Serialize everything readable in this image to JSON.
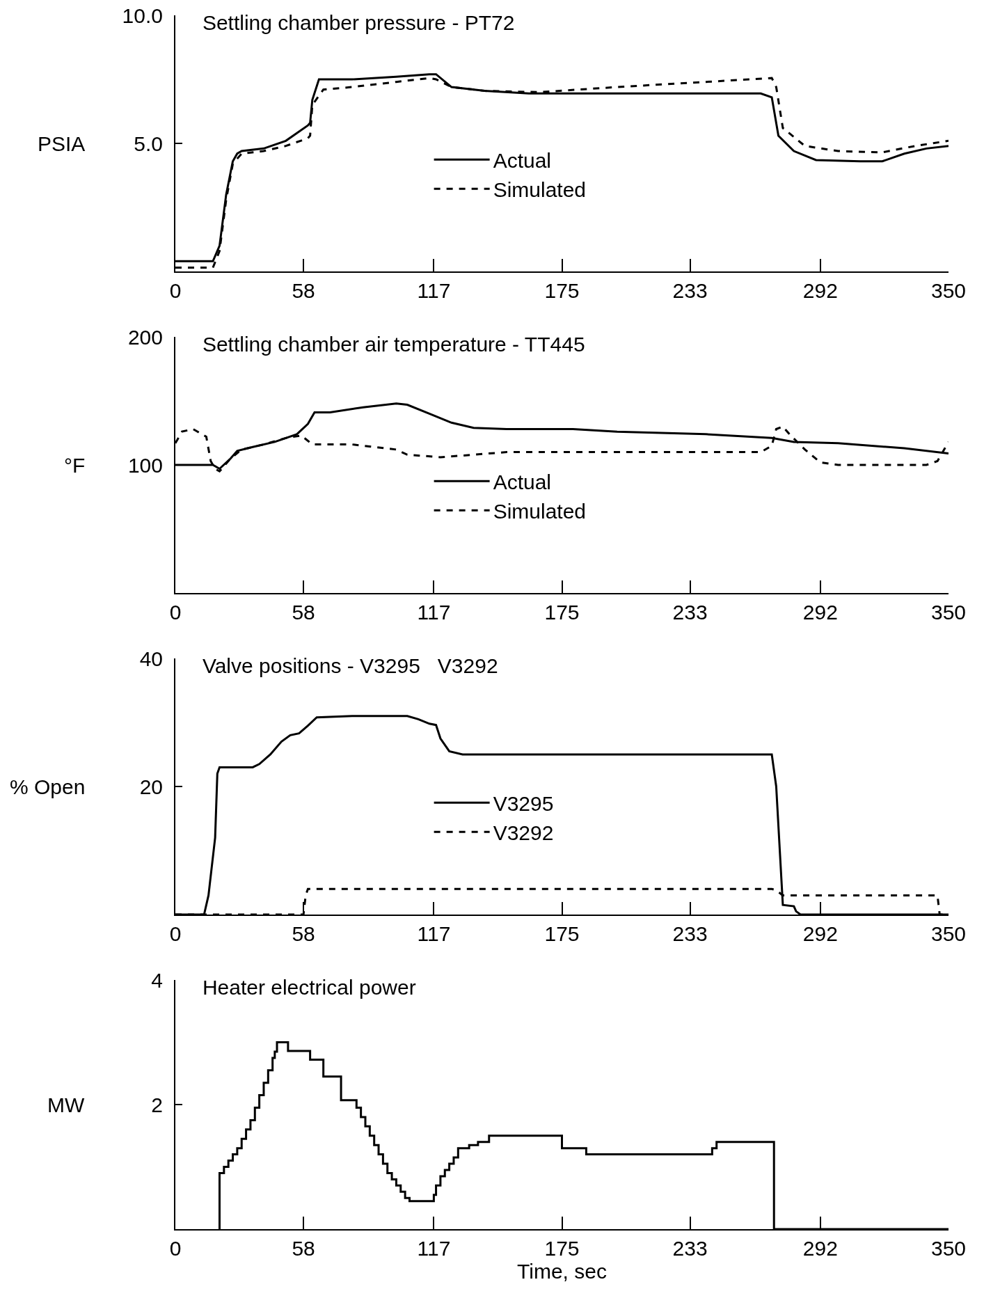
{
  "chart_data": [
    {
      "type": "line",
      "title": "Settling chamber pressure - PT72",
      "ylabel": "PSIA",
      "xlim": [
        0,
        350
      ],
      "xticks": [
        0,
        58,
        117,
        175,
        233,
        292,
        350
      ],
      "ylim": [
        0,
        10
      ],
      "yticks": [
        {
          "value": 5,
          "label": "5.0"
        },
        {
          "value": 10,
          "label": "10.0"
        }
      ],
      "legend": "center",
      "grid": false,
      "series": [
        {
          "name": "Actual",
          "color": "#000000",
          "line_style": "solid",
          "x": [
            0,
            17,
            20,
            23,
            26,
            28,
            30,
            40,
            50,
            55,
            60,
            61,
            62,
            65,
            80,
            100,
            115,
            118,
            125,
            140,
            160,
            200,
            265,
            270,
            273,
            280,
            290,
            310,
            320,
            330,
            340,
            350
          ],
          "values": [
            0.4,
            0.4,
            1.0,
            3.0,
            4.3,
            4.6,
            4.7,
            4.8,
            5.1,
            5.4,
            5.7,
            5.8,
            6.7,
            7.5,
            7.5,
            7.6,
            7.7,
            7.7,
            7.2,
            7.05,
            6.95,
            6.95,
            6.95,
            6.8,
            5.3,
            4.7,
            4.35,
            4.3,
            4.3,
            4.6,
            4.8,
            4.9
          ]
        },
        {
          "name": "Simulated",
          "color": "#000000",
          "line_style": "dashed",
          "x": [
            0,
            17,
            20,
            23,
            26,
            30,
            40,
            50,
            60,
            61,
            62,
            67,
            80,
            100,
            115,
            118,
            125,
            140,
            165,
            200,
            240,
            270,
            272,
            275,
            285,
            300,
            320,
            335,
            350
          ],
          "values": [
            0.15,
            0.15,
            0.8,
            2.8,
            4.2,
            4.6,
            4.7,
            4.9,
            5.2,
            5.3,
            6.5,
            7.1,
            7.2,
            7.4,
            7.55,
            7.5,
            7.2,
            7.05,
            7.0,
            7.2,
            7.4,
            7.55,
            7.2,
            5.6,
            4.9,
            4.7,
            4.65,
            4.9,
            5.1
          ]
        }
      ]
    },
    {
      "type": "line",
      "title": "Settling chamber air temperature - TT445",
      "ylabel": "°F",
      "xlim": [
        0,
        350
      ],
      "xticks": [
        0,
        58,
        117,
        175,
        233,
        292,
        350
      ],
      "ylim": [
        0,
        200
      ],
      "yticks": [
        100,
        200
      ],
      "legend": "center",
      "grid": false,
      "series": [
        {
          "name": "Actual",
          "color": "#000000",
          "line_style": "solid",
          "x": [
            0,
            17,
            20,
            25,
            28,
            35,
            45,
            55,
            60,
            63,
            70,
            85,
            100,
            105,
            115,
            125,
            135,
            150,
            180,
            200,
            240,
            270,
            280,
            300,
            330,
            350
          ],
          "values": [
            100,
            100,
            97,
            105,
            111,
            114,
            118,
            124,
            132,
            141,
            141,
            145,
            148,
            147,
            140,
            133,
            129,
            128,
            128,
            126,
            124,
            121,
            118,
            117,
            113,
            109
          ]
        },
        {
          "name": "Simulated",
          "color": "#000000",
          "line_style": "dashed",
          "x": [
            0,
            3,
            8,
            14,
            16,
            18,
            20,
            25,
            30,
            40,
            50,
            57,
            62,
            80,
            100,
            105,
            120,
            135,
            150,
            200,
            265,
            270,
            272,
            275,
            278,
            285,
            292,
            300,
            340,
            345,
            350
          ],
          "values": [
            117,
            126,
            128,
            122,
            103,
            97,
            95,
            105,
            112,
            116,
            121,
            123,
            116,
            116,
            112,
            108,
            106,
            108,
            110,
            110,
            110,
            115,
            128,
            130,
            124,
            112,
            102,
            100,
            100,
            103,
            118
          ]
        }
      ]
    },
    {
      "type": "line",
      "title": "Valve positions - V3295   V3292",
      "ylabel": "% Open",
      "xlim": [
        0,
        350
      ],
      "xticks": [
        0,
        58,
        117,
        175,
        233,
        292,
        350
      ],
      "ylim": [
        0,
        40
      ],
      "yticks": [
        20,
        40
      ],
      "legend": "center",
      "grid": false,
      "series": [
        {
          "name": "V3295",
          "color": "#000000",
          "line_style": "solid",
          "x": [
            0,
            13,
            15,
            18,
            19,
            20,
            35,
            38,
            43,
            48,
            52,
            56,
            60,
            64,
            80,
            105,
            110,
            115,
            118,
            120,
            124,
            130,
            270,
            272,
            275,
            280,
            281,
            283,
            350
          ],
          "values": [
            0,
            0,
            3,
            12,
            22,
            23,
            23,
            23.5,
            25,
            27,
            28,
            28.3,
            29.5,
            30.8,
            31,
            31,
            30.5,
            29.8,
            29.6,
            27.5,
            25.5,
            25,
            25,
            20,
            1.5,
            1.3,
            0.5,
            0,
            0
          ]
        },
        {
          "name": "V3292",
          "color": "#000000",
          "line_style": "dashed",
          "x": [
            0,
            58,
            59,
            60,
            270,
            272,
            275,
            345,
            346,
            350
          ],
          "values": [
            0,
            0,
            3,
            4,
            4,
            3.8,
            3,
            3,
            0,
            0
          ]
        }
      ]
    },
    {
      "type": "step",
      "title": "Heater electrical power",
      "ylabel": "MW",
      "xlabel": "Time, sec",
      "xlim": [
        0,
        350
      ],
      "xticks": [
        0,
        58,
        117,
        175,
        233,
        292,
        350
      ],
      "ylim": [
        0,
        4
      ],
      "yticks": [
        2,
        4
      ],
      "grid": false,
      "series": [
        {
          "color": "#000000",
          "line_style": "solid",
          "x": [
            20,
            20,
            22,
            24,
            26,
            28,
            30,
            32,
            34,
            36,
            38,
            40,
            42,
            44,
            45,
            46,
            51,
            61,
            67,
            75,
            82,
            84,
            86,
            88,
            90,
            92,
            94,
            96,
            98,
            100,
            102,
            104,
            106,
            117,
            118,
            120,
            122,
            124,
            126,
            128,
            133,
            137,
            142,
            175,
            186,
            243,
            245,
            271,
            350
          ],
          "values": [
            0,
            0.9,
            1.0,
            1.1,
            1.2,
            1.3,
            1.45,
            1.6,
            1.75,
            1.95,
            2.15,
            2.35,
            2.55,
            2.75,
            2.85,
            3.0,
            2.86,
            2.72,
            2.45,
            2.07,
            1.95,
            1.8,
            1.65,
            1.5,
            1.35,
            1.2,
            1.05,
            0.9,
            0.8,
            0.7,
            0.6,
            0.5,
            0.45,
            0.55,
            0.7,
            0.85,
            0.95,
            1.05,
            1.15,
            1.3,
            1.35,
            1.4,
            1.5,
            1.3,
            1.2,
            1.3,
            1.4,
            0,
            0
          ]
        }
      ]
    }
  ]
}
